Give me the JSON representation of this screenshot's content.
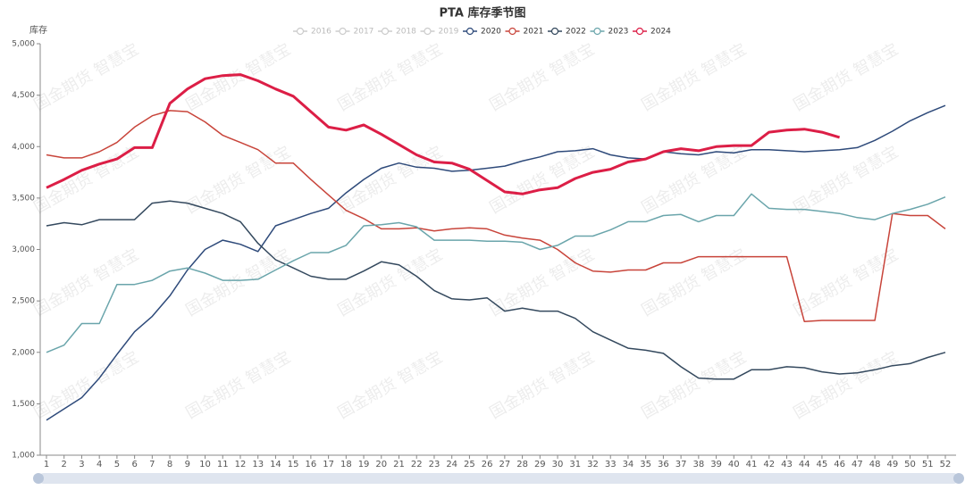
{
  "chart_data": {
    "type": "line",
    "title": "PTA 库存季节图",
    "y_label": "库存",
    "watermark": "国金期货 智慧宝",
    "categories": [
      "1",
      "2",
      "3",
      "4",
      "5",
      "6",
      "7",
      "8",
      "9",
      "10",
      "11",
      "12",
      "13",
      "14",
      "15",
      "16",
      "17",
      "18",
      "19",
      "20",
      "21",
      "22",
      "23",
      "24",
      "25",
      "26",
      "27",
      "28",
      "29",
      "30",
      "31",
      "32",
      "33",
      "34",
      "35",
      "36",
      "37",
      "38",
      "39",
      "40",
      "41",
      "42",
      "43",
      "44",
      "45",
      "46",
      "47",
      "48",
      "49",
      "50",
      "51",
      "52"
    ],
    "ylim": [
      1000,
      5000
    ],
    "yticks": [
      {
        "value": 1000,
        "label": "1,000"
      },
      {
        "value": 1500,
        "label": "1,500"
      },
      {
        "value": 2000,
        "label": "2,000"
      },
      {
        "value": 2500,
        "label": "2,500"
      },
      {
        "value": 3000,
        "label": "3,000"
      },
      {
        "value": 3500,
        "label": "3,500"
      },
      {
        "value": 4000,
        "label": "4,000"
      },
      {
        "value": 4500,
        "label": "4,500"
      },
      {
        "value": 5000,
        "label": "5,000"
      }
    ],
    "hidden_series": [
      {
        "name": "2016",
        "color": "#cccccc"
      },
      {
        "name": "2017",
        "color": "#cccccc"
      },
      {
        "name": "2018",
        "color": "#cccccc"
      },
      {
        "name": "2019",
        "color": "#cccccc"
      }
    ],
    "series": [
      {
        "name": "2020",
        "color": "#2e4a7a",
        "width": 1.5,
        "values": [
          1340,
          1450,
          1560,
          1750,
          1980,
          2200,
          2350,
          2550,
          2800,
          3000,
          3090,
          3050,
          2980,
          3230,
          3290,
          3350,
          3400,
          3550,
          3680,
          3790,
          3840,
          3800,
          3790,
          3760,
          3770,
          3790,
          3810,
          3860,
          3900,
          3950,
          3960,
          3980,
          3920,
          3890,
          3880,
          3950,
          3930,
          3920,
          3950,
          3940,
          3970,
          3970,
          3960,
          3950,
          3960,
          3970,
          3990,
          4060,
          4150,
          4250,
          4330,
          4400
        ]
      },
      {
        "name": "2021",
        "color": "#c8443a",
        "width": 1.5,
        "values": [
          3920,
          3890,
          3890,
          3950,
          4040,
          4190,
          4300,
          4350,
          4340,
          4240,
          4110,
          4040,
          3970,
          3840,
          3840,
          3680,
          3530,
          3380,
          3300,
          3200,
          3200,
          3210,
          3180,
          3200,
          3210,
          3200,
          3140,
          3110,
          3090,
          3000,
          2870,
          2790,
          2780,
          2800,
          2800,
          2870,
          2870,
          2930,
          2930,
          2930,
          2930,
          2930,
          2930,
          2300,
          2310,
          2310,
          2310,
          2310,
          3350,
          3330,
          3330,
          3200
        ]
      },
      {
        "name": "2022",
        "color": "#34495e",
        "width": 1.5,
        "values": [
          3230,
          3260,
          3240,
          3290,
          3290,
          3290,
          3450,
          3470,
          3450,
          3400,
          3350,
          3270,
          3060,
          2900,
          2820,
          2740,
          2710,
          2710,
          2790,
          2880,
          2850,
          2740,
          2600,
          2520,
          2510,
          2530,
          2400,
          2430,
          2400,
          2400,
          2330,
          2200,
          2120,
          2040,
          2020,
          1990,
          1860,
          1750,
          1740,
          1740,
          1830,
          1830,
          1860,
          1850,
          1810,
          1790,
          1800,
          1830,
          1870,
          1890,
          1950,
          2000
        ]
      },
      {
        "name": "2023",
        "color": "#6aa5ab",
        "width": 1.5,
        "values": [
          2000,
          2070,
          2280,
          2280,
          2660,
          2660,
          2700,
          2790,
          2820,
          2770,
          2700,
          2700,
          2710,
          2800,
          2890,
          2970,
          2970,
          3040,
          3230,
          3240,
          3260,
          3220,
          3090,
          3090,
          3090,
          3080,
          3080,
          3070,
          3000,
          3040,
          3130,
          3130,
          3190,
          3270,
          3270,
          3330,
          3340,
          3270,
          3330,
          3330,
          3540,
          3400,
          3390,
          3390,
          3370,
          3350,
          3310,
          3290,
          3350,
          3390,
          3440,
          3510
        ]
      },
      {
        "name": "2024",
        "color": "#dc1e46",
        "width": 3,
        "values": [
          3600,
          3680,
          3770,
          3830,
          3880,
          3990,
          3990,
          4420,
          4560,
          4660,
          4690,
          4700,
          4640,
          4560,
          4490,
          4340,
          4190,
          4160,
          4210,
          4120,
          4020,
          3920,
          3850,
          3840,
          3780,
          3670,
          3560,
          3540,
          3580,
          3600,
          3690,
          3750,
          3780,
          3850,
          3880,
          3950,
          3980,
          3960,
          4000,
          4010,
          4010,
          4140,
          4160,
          4170,
          4140,
          4090,
          null,
          null,
          null,
          null,
          null,
          null
        ]
      }
    ]
  }
}
